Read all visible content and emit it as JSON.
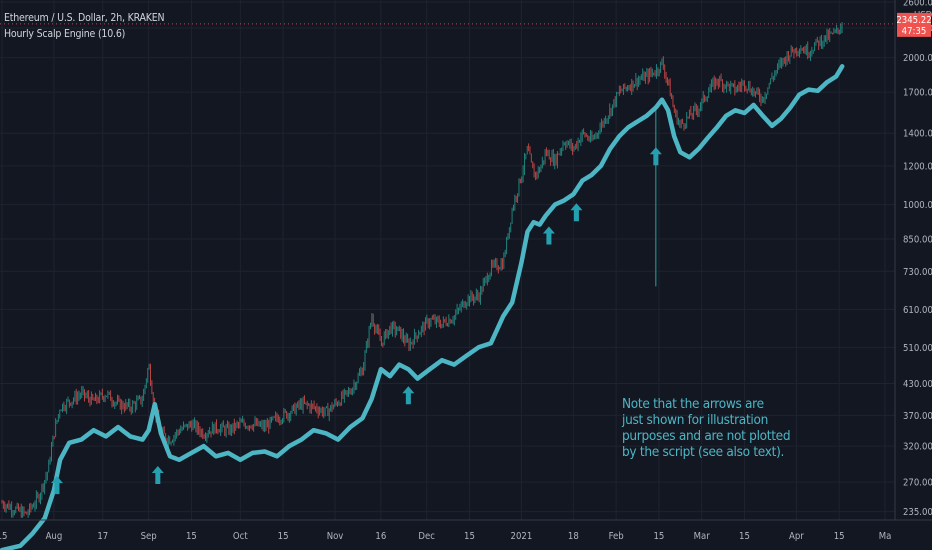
{
  "header": {
    "title": "Ethereum / U.S. Dollar, 2h, KRAKEN",
    "indicator": "Hourly Scalp Engine (10.6)"
  },
  "price_scale": {
    "currency": "USD",
    "last_price": "2345.22",
    "countdown": "47:35"
  },
  "note": {
    "lines": [
      "Note that the arrows are",
      "just shown for illustration",
      "purposes and are not plotted",
      "by the script (see also text)."
    ]
  },
  "colors": {
    "background": "#131722",
    "grid": "#1f2330",
    "candle_up": "#26a69a",
    "candle_down": "#ef5350",
    "indicator_line": "#4db6c4",
    "arrow": "#26a0b0",
    "price_tag": "#ef5350",
    "note_text": "#4db6c4"
  },
  "chart_data": {
    "type": "line",
    "scale": "log",
    "ylim": [
      228,
      2600
    ],
    "y_ticks": [
      235,
      270,
      320,
      370,
      430,
      510,
      610,
      730,
      850,
      1000,
      1200,
      1400,
      1700,
      2000,
      2300,
      2600
    ],
    "y_tick_labels": [
      "235.00",
      "270.00",
      "320.00",
      "370.00",
      "430.00",
      "510.00",
      "610.00",
      "730.00",
      "850.00",
      "1000.00",
      "1200.00",
      "1400.00",
      "1700.00",
      "2000.00",
      "2300.00",
      "2600.00"
    ],
    "x_ticks": [
      {
        "day": 0,
        "label": "15"
      },
      {
        "day": 17,
        "label": "Aug"
      },
      {
        "day": 33,
        "label": "17"
      },
      {
        "day": 48,
        "label": "Sep"
      },
      {
        "day": 62,
        "label": "15"
      },
      {
        "day": 78,
        "label": "Oct"
      },
      {
        "day": 92,
        "label": "15"
      },
      {
        "day": 109,
        "label": "Nov"
      },
      {
        "day": 124,
        "label": "16"
      },
      {
        "day": 139,
        "label": "Dec"
      },
      {
        "day": 153,
        "label": "15"
      },
      {
        "day": 170,
        "label": "2021"
      },
      {
        "day": 187,
        "label": "18"
      },
      {
        "day": 201,
        "label": "Feb"
      },
      {
        "day": 215,
        "label": "15"
      },
      {
        "day": 229,
        "label": "Mar"
      },
      {
        "day": 243,
        "label": "15"
      },
      {
        "day": 260,
        "label": "Apr"
      },
      {
        "day": 274,
        "label": "15"
      },
      {
        "day": 289,
        "label": "Ma"
      }
    ],
    "price_series": {
      "name": "ETHUSD",
      "days": [
        0,
        4,
        8,
        12,
        15,
        17,
        19,
        22,
        26,
        30,
        34,
        38,
        42,
        46,
        48,
        50,
        52,
        55,
        58,
        62,
        66,
        70,
        74,
        78,
        82,
        86,
        90,
        94,
        98,
        102,
        106,
        110,
        114,
        118,
        121,
        124,
        127,
        130,
        133,
        136,
        140,
        144,
        148,
        152,
        156,
        160,
        164,
        167,
        170,
        172,
        174,
        176,
        178,
        181,
        184,
        187,
        190,
        193,
        196,
        199,
        202,
        205,
        208,
        211,
        214,
        216,
        218,
        220,
        222,
        225,
        228,
        231,
        234,
        237,
        240,
        243,
        246,
        249,
        252,
        255,
        258,
        261,
        264,
        267,
        270,
        273,
        275
      ],
      "values": [
        245,
        238,
        232,
        252,
        285,
        340,
        385,
        395,
        410,
        395,
        410,
        390,
        385,
        400,
        470,
        380,
        340,
        330,
        345,
        355,
        340,
        350,
        345,
        355,
        355,
        350,
        365,
        375,
        390,
        385,
        375,
        395,
        415,
        460,
        590,
        520,
        560,
        550,
        515,
        545,
        580,
        570,
        590,
        640,
        650,
        740,
        760,
        980,
        1150,
        1300,
        1150,
        1180,
        1280,
        1230,
        1350,
        1300,
        1400,
        1350,
        1450,
        1560,
        1700,
        1750,
        1800,
        1830,
        1880,
        1950,
        1780,
        1550,
        1450,
        1520,
        1580,
        1700,
        1800,
        1760,
        1720,
        1780,
        1700,
        1650,
        1820,
        1950,
        2050,
        2100,
        2060,
        2150,
        2200,
        2250,
        2345
      ]
    },
    "indicator_series": {
      "days": [
        0,
        6,
        10,
        14,
        17,
        19,
        22,
        26,
        30,
        34,
        38,
        42,
        46,
        48,
        50,
        52,
        55,
        58,
        62,
        66,
        70,
        74,
        78,
        82,
        86,
        90,
        94,
        98,
        102,
        106,
        110,
        114,
        118,
        121,
        124,
        127,
        130,
        133,
        136,
        140,
        144,
        148,
        152,
        156,
        160,
        164,
        167,
        170,
        172,
        174,
        176,
        178,
        181,
        184,
        187,
        190,
        193,
        196,
        199,
        202,
        205,
        208,
        211,
        214,
        216,
        218,
        220,
        222,
        225,
        228,
        231,
        234,
        237,
        240,
        243,
        246,
        249,
        252,
        255,
        258,
        261,
        264,
        267,
        270,
        273,
        275
      ],
      "values": [
        196,
        200,
        212,
        228,
        260,
        300,
        325,
        330,
        345,
        335,
        350,
        335,
        330,
        345,
        390,
        340,
        305,
        300,
        310,
        320,
        305,
        310,
        300,
        310,
        312,
        305,
        320,
        330,
        345,
        340,
        330,
        350,
        365,
        400,
        460,
        445,
        470,
        460,
        440,
        460,
        480,
        470,
        490,
        510,
        520,
        590,
        630,
        760,
        880,
        920,
        910,
        950,
        1000,
        1020,
        1050,
        1120,
        1150,
        1200,
        1300,
        1380,
        1440,
        1480,
        1520,
        1580,
        1640,
        1560,
        1380,
        1280,
        1250,
        1300,
        1370,
        1440,
        1520,
        1560,
        1540,
        1600,
        1520,
        1450,
        1500,
        1580,
        1680,
        1720,
        1710,
        1780,
        1830,
        1920
      ]
    },
    "wick_spike": {
      "day": 214,
      "high": 1600,
      "low": 680
    },
    "annotation_arrows": [
      {
        "day": 18,
        "value": 265
      },
      {
        "day": 51,
        "value": 278
      },
      {
        "day": 133,
        "value": 405
      },
      {
        "day": 179,
        "value": 860
      },
      {
        "day": 188,
        "value": 960
      },
      {
        "day": 214,
        "value": 1250
      }
    ]
  }
}
